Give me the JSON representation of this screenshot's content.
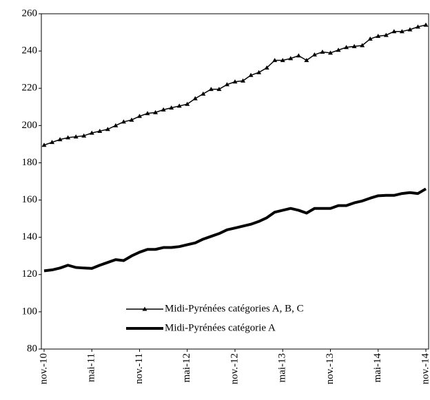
{
  "chart_data": {
    "type": "line",
    "categories": [
      "nov.-10",
      null,
      null,
      null,
      null,
      null,
      "mai-11",
      null,
      null,
      null,
      null,
      null,
      "nov.-11",
      null,
      null,
      null,
      null,
      null,
      "mai-12",
      null,
      null,
      null,
      null,
      null,
      "nov.-12",
      null,
      null,
      null,
      null,
      null,
      "mai-13",
      null,
      null,
      null,
      null,
      null,
      "nov.-13",
      null,
      null,
      null,
      null,
      null,
      "mai-14",
      null,
      null,
      null,
      null,
      null,
      "nov.-14"
    ],
    "series": [
      {
        "name": "Midi-Pyrénées catégories A, B, C",
        "color": "#000000",
        "marker": "triangle",
        "values": [
          189.5,
          191,
          192.5,
          193.5,
          194,
          194.5,
          196,
          197,
          198,
          200,
          202,
          203,
          205,
          206.5,
          207,
          208.5,
          209.5,
          210.5,
          211.5,
          214.5,
          217,
          219.5,
          219.5,
          222,
          223.5,
          224,
          227,
          228.5,
          231,
          235,
          235,
          236,
          237.5,
          235,
          238,
          239.5,
          239,
          240.5,
          242,
          242.5,
          243,
          246.5,
          248,
          248.5,
          250.5,
          250.5,
          251.5,
          253,
          254
        ]
      },
      {
        "name": "Midi-Pyrénées catégorie A",
        "color": "#000000",
        "marker": "none",
        "values": [
          122,
          122.5,
          123.5,
          125,
          123.8,
          123.5,
          123.3,
          125,
          126.5,
          128,
          127.5,
          130,
          132,
          133.5,
          133.5,
          134.5,
          134.5,
          135,
          136,
          137,
          139,
          140.5,
          142,
          144,
          145,
          146,
          147,
          148.5,
          150.5,
          153.5,
          154.5,
          155.5,
          154.5,
          153,
          155.5,
          155.5,
          155.5,
          157,
          157,
          158.5,
          159.5,
          161,
          162.3,
          162.5,
          162.5,
          163.5,
          164,
          163.5,
          166
        ]
      }
    ],
    "ylim": [
      80,
      260
    ],
    "yticks": [
      80,
      100,
      120,
      140,
      160,
      180,
      200,
      220,
      240,
      260
    ],
    "grid": false,
    "legend": "lower center"
  }
}
